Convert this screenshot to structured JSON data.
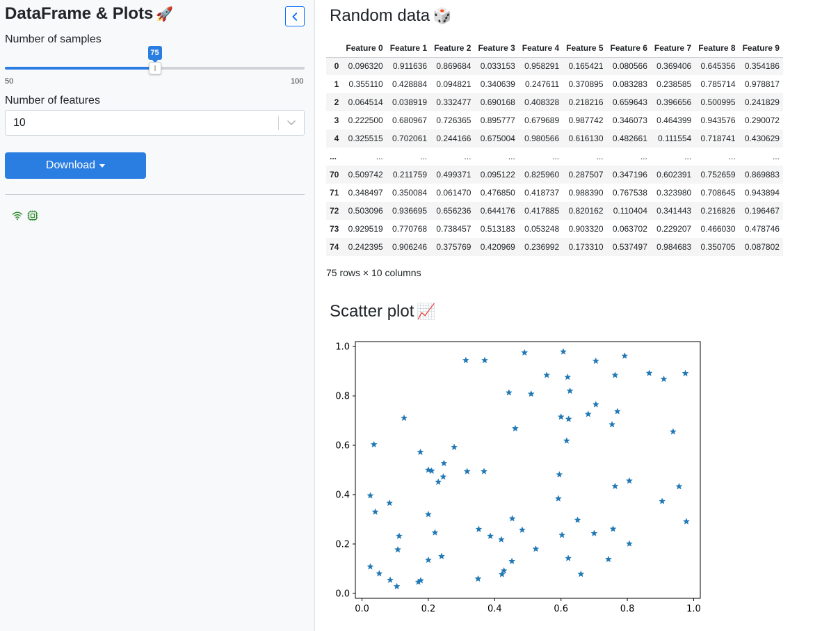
{
  "sidebar": {
    "title": "DataFrame & Plots",
    "title_emoji": "🚀",
    "samples_label": "Number of samples",
    "slider": {
      "min": 50,
      "max": 100,
      "value": 75,
      "min_label": "50",
      "max_label": "100",
      "value_label": "75"
    },
    "features_label": "Number of features",
    "features_value": "10",
    "download_label": "Download",
    "status_icons": [
      "wifi-icon",
      "cpu-icon"
    ]
  },
  "main": {
    "table_title": "Random data",
    "table_emoji": "🎲",
    "columns": [
      "Feature 0",
      "Feature 1",
      "Feature 2",
      "Feature 3",
      "Feature 4",
      "Feature 5",
      "Feature 6",
      "Feature 7",
      "Feature 8",
      "Feature 9"
    ],
    "rows": [
      {
        "index": "0",
        "values": [
          "0.096320",
          "0.911636",
          "0.869684",
          "0.033153",
          "0.958291",
          "0.165421",
          "0.080566",
          "0.369406",
          "0.645356",
          "0.354186"
        ]
      },
      {
        "index": "1",
        "values": [
          "0.355110",
          "0.428884",
          "0.094821",
          "0.340639",
          "0.247611",
          "0.370895",
          "0.083283",
          "0.238585",
          "0.785714",
          "0.978817"
        ]
      },
      {
        "index": "2",
        "values": [
          "0.064514",
          "0.038919",
          "0.332477",
          "0.690168",
          "0.408328",
          "0.218216",
          "0.659643",
          "0.396656",
          "0.500995",
          "0.241829"
        ]
      },
      {
        "index": "3",
        "values": [
          "0.222500",
          "0.680967",
          "0.726365",
          "0.895777",
          "0.679689",
          "0.987742",
          "0.346073",
          "0.464399",
          "0.943576",
          "0.290072"
        ]
      },
      {
        "index": "4",
        "values": [
          "0.325515",
          "0.702061",
          "0.244166",
          "0.675004",
          "0.980566",
          "0.616130",
          "0.482661",
          "0.111554",
          "0.718741",
          "0.430629"
        ]
      },
      {
        "index": "...",
        "values": [
          "...",
          "...",
          "...",
          "...",
          "...",
          "...",
          "...",
          "...",
          "...",
          "..."
        ]
      },
      {
        "index": "70",
        "values": [
          "0.509742",
          "0.211759",
          "0.499371",
          "0.095122",
          "0.825960",
          "0.287507",
          "0.347196",
          "0.602391",
          "0.752659",
          "0.869883"
        ]
      },
      {
        "index": "71",
        "values": [
          "0.348497",
          "0.350084",
          "0.061470",
          "0.476850",
          "0.418737",
          "0.988390",
          "0.767538",
          "0.323980",
          "0.708645",
          "0.943894"
        ]
      },
      {
        "index": "72",
        "values": [
          "0.503096",
          "0.936695",
          "0.656236",
          "0.644176",
          "0.417885",
          "0.820162",
          "0.110404",
          "0.341443",
          "0.216826",
          "0.196467"
        ]
      },
      {
        "index": "73",
        "values": [
          "0.929519",
          "0.770768",
          "0.738457",
          "0.513183",
          "0.053248",
          "0.903320",
          "0.063702",
          "0.229207",
          "0.466030",
          "0.478746"
        ]
      },
      {
        "index": "74",
        "values": [
          "0.242395",
          "0.906246",
          "0.375769",
          "0.420969",
          "0.236992",
          "0.173310",
          "0.537497",
          "0.984683",
          "0.350705",
          "0.087802"
        ]
      }
    ],
    "table_caption": "75 rows × 10 columns",
    "plot_title": "Scatter plot",
    "plot_emoji": "📈"
  },
  "chart_data": {
    "type": "scatter",
    "marker": "star",
    "color": "#1f77b4",
    "xlim": [
      -0.02,
      1.02
    ],
    "ylim": [
      -0.02,
      1.02
    ],
    "xticks": [
      "0.0",
      "0.2",
      "0.4",
      "0.6",
      "0.8",
      "1.0"
    ],
    "yticks": [
      "0.0",
      "0.2",
      "0.4",
      "0.6",
      "0.8",
      "1.0"
    ],
    "points": [
      [
        0.313,
        0.944
      ],
      [
        0.37,
        0.944
      ],
      [
        0.49,
        0.975
      ],
      [
        0.607,
        0.979
      ],
      [
        0.705,
        0.941
      ],
      [
        0.792,
        0.962
      ],
      [
        0.866,
        0.892
      ],
      [
        0.91,
        0.868
      ],
      [
        0.975,
        0.891
      ],
      [
        0.557,
        0.884
      ],
      [
        0.62,
        0.876
      ],
      [
        0.763,
        0.884
      ],
      [
        0.443,
        0.813
      ],
      [
        0.51,
        0.808
      ],
      [
        0.627,
        0.82
      ],
      [
        0.705,
        0.765
      ],
      [
        0.682,
        0.726
      ],
      [
        0.77,
        0.737
      ],
      [
        0.127,
        0.71
      ],
      [
        0.6,
        0.715
      ],
      [
        0.623,
        0.706
      ],
      [
        0.754,
        0.684
      ],
      [
        0.462,
        0.668
      ],
      [
        0.938,
        0.655
      ],
      [
        0.036,
        0.603
      ],
      [
        0.278,
        0.592
      ],
      [
        0.176,
        0.572
      ],
      [
        0.617,
        0.618
      ],
      [
        0.247,
        0.527
      ],
      [
        0.2,
        0.5
      ],
      [
        0.21,
        0.496
      ],
      [
        0.317,
        0.494
      ],
      [
        0.368,
        0.494
      ],
      [
        0.245,
        0.472
      ],
      [
        0.23,
        0.451
      ],
      [
        0.595,
        0.481
      ],
      [
        0.806,
        0.456
      ],
      [
        0.763,
        0.434
      ],
      [
        0.956,
        0.433
      ],
      [
        0.025,
        0.396
      ],
      [
        0.083,
        0.366
      ],
      [
        0.592,
        0.384
      ],
      [
        0.905,
        0.373
      ],
      [
        0.04,
        0.33
      ],
      [
        0.2,
        0.32
      ],
      [
        0.453,
        0.303
      ],
      [
        0.65,
        0.297
      ],
      [
        0.978,
        0.291
      ],
      [
        0.22,
        0.246
      ],
      [
        0.352,
        0.26
      ],
      [
        0.483,
        0.257
      ],
      [
        0.757,
        0.261
      ],
      [
        0.112,
        0.232
      ],
      [
        0.387,
        0.232
      ],
      [
        0.42,
        0.218
      ],
      [
        0.603,
        0.236
      ],
      [
        0.7,
        0.243
      ],
      [
        0.108,
        0.177
      ],
      [
        0.524,
        0.18
      ],
      [
        0.806,
        0.201
      ],
      [
        0.2,
        0.135
      ],
      [
        0.24,
        0.15
      ],
      [
        0.452,
        0.13
      ],
      [
        0.622,
        0.142
      ],
      [
        0.743,
        0.138
      ],
      [
        0.025,
        0.108
      ],
      [
        0.052,
        0.08
      ],
      [
        0.428,
        0.092
      ],
      [
        0.422,
        0.077
      ],
      [
        0.66,
        0.078
      ],
      [
        0.085,
        0.054
      ],
      [
        0.17,
        0.046
      ],
      [
        0.177,
        0.052
      ],
      [
        0.35,
        0.059
      ],
      [
        0.105,
        0.028
      ]
    ]
  }
}
